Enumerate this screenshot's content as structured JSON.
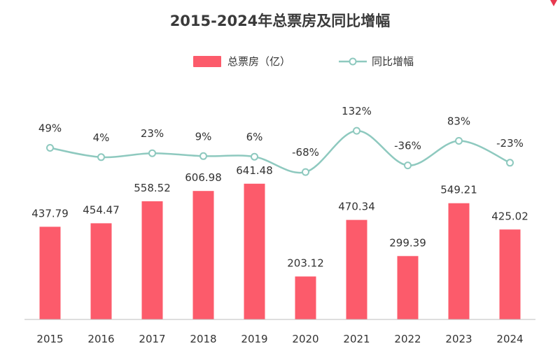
{
  "chart_data": {
    "type": "bar+line",
    "title": "2015-2024年总票房及同比增幅",
    "categories": [
      "2015",
      "2016",
      "2017",
      "2018",
      "2019",
      "2020",
      "2021",
      "2022",
      "2023",
      "2024"
    ],
    "series": [
      {
        "name": "总票房（亿）",
        "type": "bar",
        "values": [
          437.79,
          454.47,
          558.52,
          606.98,
          641.48,
          203.12,
          470.34,
          299.39,
          549.21,
          425.02
        ],
        "labels": [
          "437.79",
          "454.47",
          "558.52",
          "606.98",
          "641.48",
          "203.12",
          "470.34",
          "299.39",
          "549.21",
          "425.02"
        ]
      },
      {
        "name": "同比增幅",
        "type": "line",
        "values": [
          49,
          4,
          23,
          9,
          6,
          -68,
          132,
          -36,
          83,
          -23
        ],
        "labels": [
          "49%",
          "4%",
          "23%",
          "9%",
          "6%",
          "-68%",
          "132%",
          "-36%",
          "83%",
          "-23%"
        ]
      }
    ],
    "bar_ylim": [
      0,
      700
    ],
    "line_ylim": [
      -100,
      150
    ],
    "legend_position": "top-center"
  },
  "colors": {
    "bar": "#fc5b6b",
    "line": "#8ec9bf",
    "marker_fill": "#ffffff",
    "axis": "#bdbdbd",
    "accent_mark": "#e8384f"
  }
}
